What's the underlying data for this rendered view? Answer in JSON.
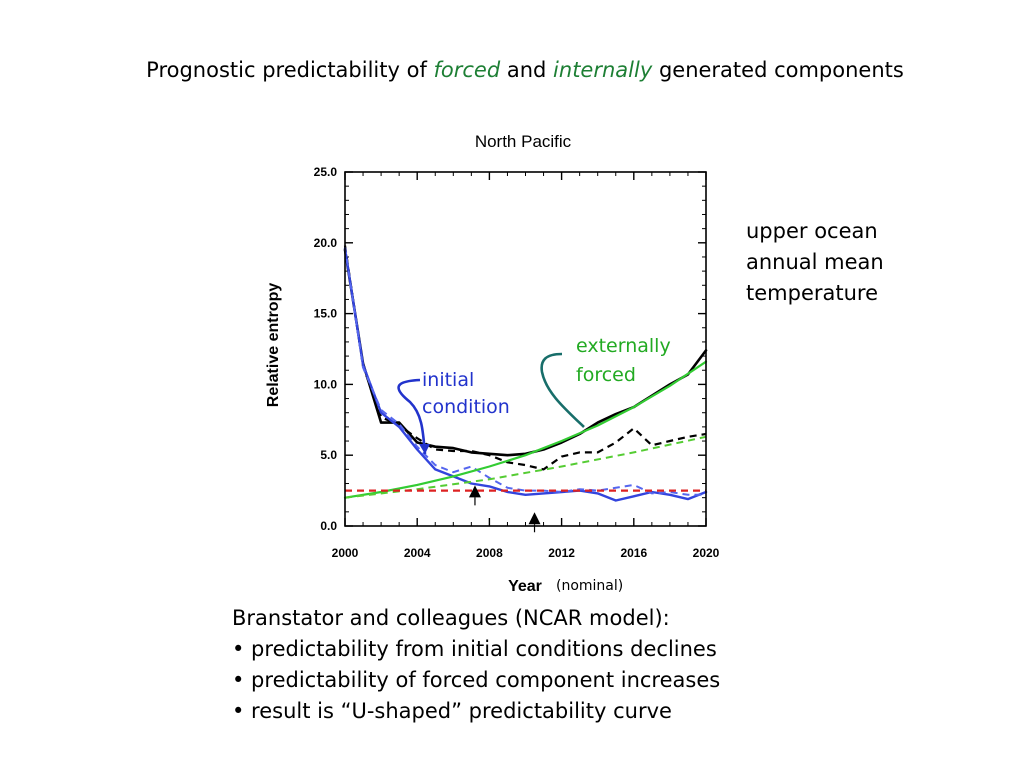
{
  "slide": {
    "title_part1": "Prognostic predictability of ",
    "title_em1": "forced",
    "title_part2": " and ",
    "title_em2": "internally",
    "title_part3": " generated components",
    "side_note": [
      "upper ocean",
      "annual mean",
      "temperature"
    ],
    "bullets": [
      "Branstator and colleagues (NCAR model):",
      "• predictability from initial conditions declines",
      "• predictability of forced component increases",
      "• result is “U-shaped” predictability curve"
    ]
  },
  "chart_data": {
    "type": "line",
    "title": "North Pacific",
    "xlabel": "Year",
    "xlabel_note": "(nominal)",
    "ylabel": "Relative entropy",
    "xlim": [
      2000,
      2020
    ],
    "ylim": [
      0,
      25
    ],
    "xticks": [
      2000,
      2004,
      2008,
      2012,
      2016,
      2020
    ],
    "yticks": [
      0,
      5,
      10,
      15,
      20,
      25
    ],
    "ytick_labels": [
      "0.0",
      "5.0",
      "10.0",
      "15.0",
      "20.0",
      "25.0"
    ],
    "grid": false,
    "series": [
      {
        "color": "#000000",
        "style": "solid",
        "width": 2.6,
        "x": [
          2000,
          2001,
          2002,
          2003,
          2004,
          2005,
          2006,
          2007,
          2008,
          2009,
          2010,
          2011,
          2012,
          2013,
          2014,
          2015,
          2016,
          2017,
          2018,
          2019,
          2020
        ],
        "y": [
          19.5,
          11.5,
          7.3,
          7.3,
          5.9,
          5.6,
          5.5,
          5.2,
          5.1,
          5.0,
          5.1,
          5.4,
          5.9,
          6.5,
          7.3,
          7.9,
          8.4,
          9.2,
          10.0,
          10.7,
          12.4
        ]
      },
      {
        "color": "#000000",
        "style": "dashed",
        "width": 2.2,
        "x": [
          2000,
          2001,
          2002,
          2003,
          2004,
          2005,
          2006,
          2007,
          2008,
          2009,
          2010,
          2011,
          2012,
          2013,
          2014,
          2015,
          2016,
          2017,
          2018,
          2019,
          2020
        ],
        "y": [
          19.8,
          11.3,
          7.7,
          7.1,
          6.2,
          5.4,
          5.3,
          5.3,
          5.0,
          4.5,
          4.3,
          4.0,
          4.9,
          5.2,
          5.2,
          5.9,
          6.9,
          5.7,
          6.0,
          6.3,
          6.5
        ]
      },
      {
        "color": "#3344dd",
        "style": "solid",
        "width": 2.4,
        "x": [
          2000,
          2001,
          2002,
          2003,
          2004,
          2005,
          2006,
          2007,
          2008,
          2009,
          2010,
          2011,
          2012,
          2013,
          2014,
          2015,
          2016,
          2017,
          2018,
          2019,
          2020
        ],
        "y": [
          19.6,
          11.4,
          8.0,
          7.0,
          5.4,
          4.0,
          3.5,
          3.0,
          2.8,
          2.4,
          2.2,
          2.3,
          2.4,
          2.5,
          2.3,
          1.8,
          2.1,
          2.4,
          2.2,
          1.9,
          2.4
        ]
      },
      {
        "color": "#5566ee",
        "style": "dashed",
        "width": 2.0,
        "x": [
          2000,
          2001,
          2002,
          2003,
          2004,
          2005,
          2006,
          2007,
          2008,
          2009,
          2010,
          2011,
          2012,
          2013,
          2014,
          2015,
          2016,
          2017,
          2018,
          2019,
          2020
        ],
        "y": [
          19.7,
          11.2,
          8.2,
          7.2,
          5.6,
          4.3,
          3.8,
          4.2,
          3.4,
          2.7,
          2.5,
          2.5,
          2.4,
          2.6,
          2.5,
          2.7,
          2.9,
          2.3,
          2.4,
          2.2,
          2.2
        ]
      },
      {
        "color": "#33cc33",
        "style": "solid",
        "width": 2.2,
        "x": [
          2000,
          2002,
          2004,
          2006,
          2008,
          2010,
          2012,
          2014,
          2016,
          2018,
          2020
        ],
        "y": [
          2.0,
          2.4,
          2.9,
          3.5,
          4.2,
          5.0,
          6.0,
          7.1,
          8.4,
          9.9,
          11.6
        ]
      },
      {
        "color": "#55cc33",
        "style": "dashed",
        "width": 2.0,
        "x": [
          2000,
          2004,
          2008,
          2012,
          2016,
          2020
        ],
        "y": [
          2.0,
          2.6,
          3.3,
          4.2,
          5.2,
          6.3
        ]
      },
      {
        "color": "#dd2222",
        "style": "dashed",
        "width": 2.2,
        "x": [
          2000,
          2020
        ],
        "y": [
          2.5,
          2.5
        ]
      }
    ],
    "markers": [
      {
        "type": "arrow-up",
        "x": 2007.2,
        "y": 2.8
      },
      {
        "type": "arrow-up",
        "x": 2010.5,
        "y": 0.9
      }
    ],
    "annotations": [
      {
        "lines": [
          "initial",
          "condition"
        ],
        "color": "#2233cc"
      },
      {
        "lines": [
          "externally",
          "forced"
        ],
        "color": "#22aa22"
      }
    ]
  }
}
